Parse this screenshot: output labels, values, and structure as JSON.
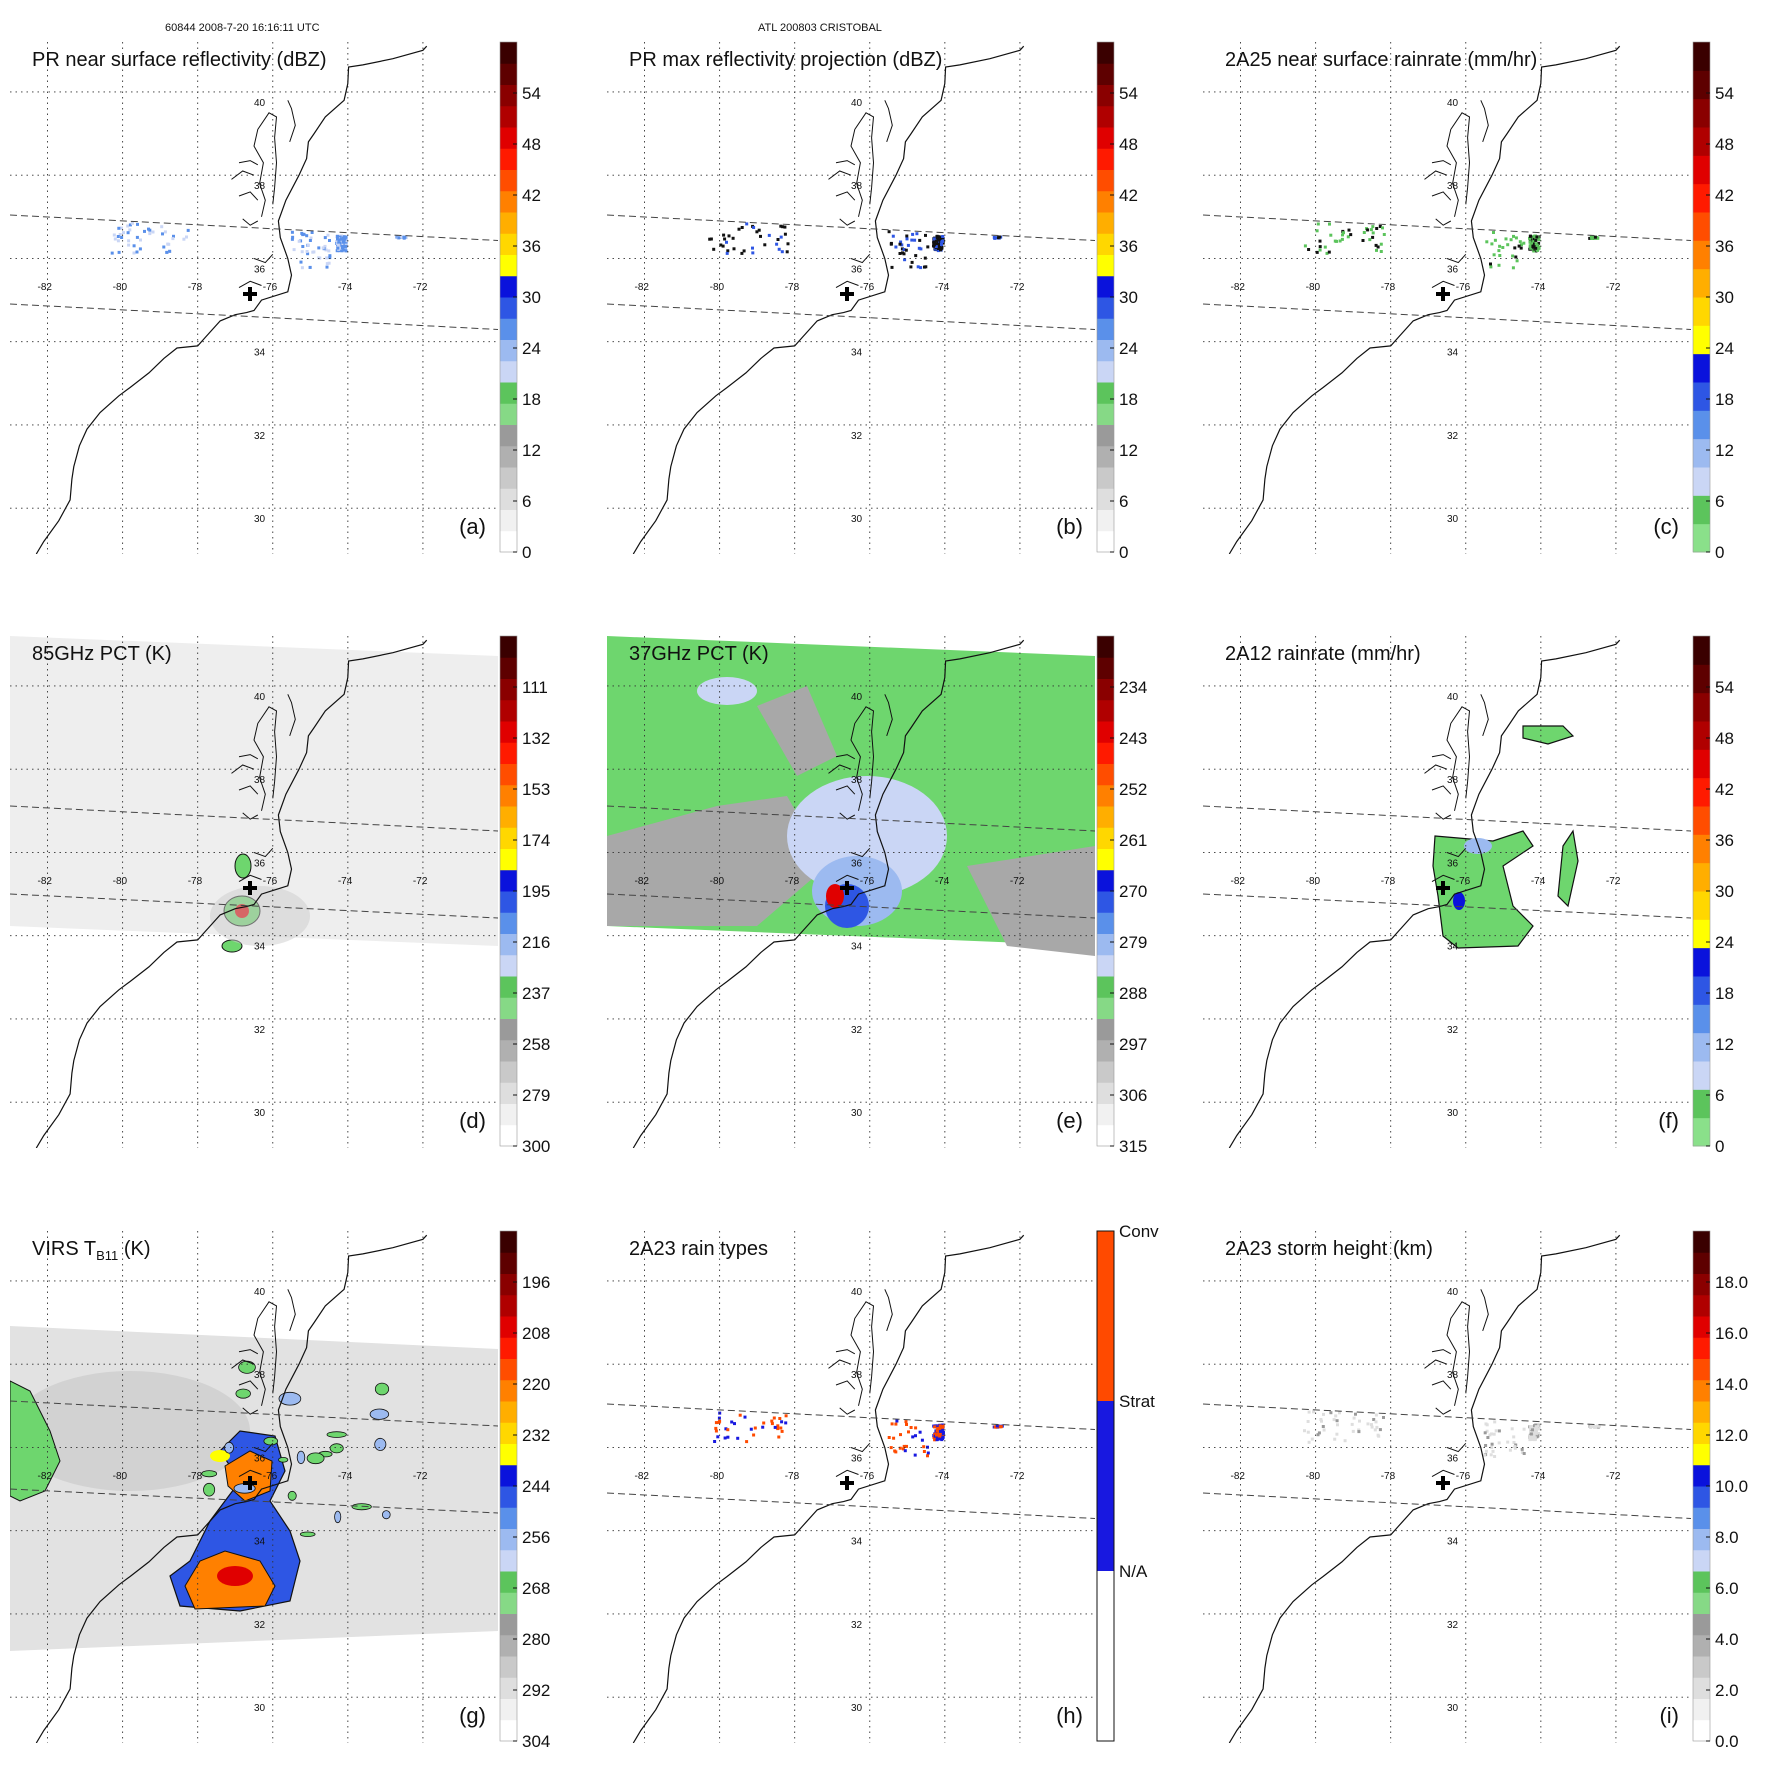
{
  "header": {
    "orbit_info": "60844 2008-7-20 16:16:11 UTC",
    "storm_info": "ATL 200803 CRISTOBAL"
  },
  "map": {
    "lon_labels": [
      "-82",
      "-80",
      "-78",
      "-76",
      "-74",
      "-72"
    ],
    "lat_labels": [
      "40",
      "38",
      "36",
      "34",
      "32",
      "30"
    ]
  },
  "palette": {
    "conv": "#ff4a00",
    "strat": "#1818e0",
    "na": "#ffffff",
    "land_line": "#111111",
    "grid": "#333333"
  },
  "panels": [
    {
      "id": "a",
      "title": "PR near surface reflectivity (dBZ)",
      "letter": "(a)",
      "type": "pr_sfc",
      "swath": "pr",
      "colorbar": {
        "kind": "dbz",
        "ticks": [
          "0",
          "6",
          "12",
          "18",
          "24",
          "30",
          "36",
          "42",
          "48",
          "54"
        ]
      }
    },
    {
      "id": "b",
      "title": "PR max reflectivity projection (dBZ)",
      "letter": "(b)",
      "type": "pr_max",
      "swath": "pr",
      "colorbar": {
        "kind": "dbz",
        "ticks": [
          "0",
          "6",
          "12",
          "18",
          "24",
          "30",
          "36",
          "42",
          "48",
          "54"
        ]
      }
    },
    {
      "id": "c",
      "title": "2A25 near surface rainrate (mm/hr)",
      "letter": "(c)",
      "type": "rain25",
      "swath": "pr",
      "colorbar": {
        "kind": "rain",
        "ticks": [
          "0",
          "6",
          "12",
          "18",
          "24",
          "30",
          "36",
          "42",
          "48",
          "54"
        ]
      }
    },
    {
      "id": "d",
      "title": "85GHz PCT (K)",
      "letter": "(d)",
      "type": "pct85",
      "swath": "tmi",
      "colorbar": {
        "kind": "pct",
        "ticks": [
          "300",
          "279",
          "258",
          "237",
          "216",
          "195",
          "174",
          "153",
          "132",
          "111"
        ]
      }
    },
    {
      "id": "e",
      "title": "37GHz PCT (K)",
      "letter": "(e)",
      "type": "pct37",
      "swath": "tmi",
      "colorbar": {
        "kind": "pct",
        "ticks": [
          "315",
          "306",
          "297",
          "288",
          "279",
          "270",
          "261",
          "252",
          "243",
          "234"
        ]
      }
    },
    {
      "id": "f",
      "title": "2A12 rainrate (mm/hr)",
      "letter": "(f)",
      "type": "rain12",
      "swath": "tmi",
      "colorbar": {
        "kind": "rain",
        "ticks": [
          "0",
          "6",
          "12",
          "18",
          "24",
          "30",
          "36",
          "42",
          "48",
          "54"
        ]
      }
    },
    {
      "id": "g",
      "title_main": "VIRS T",
      "title_sub": "B11",
      "title_tail": " (K)",
      "letter": "(g)",
      "type": "virs",
      "swath": "virs",
      "colorbar": {
        "kind": "virs",
        "ticks": [
          "304",
          "292",
          "280",
          "268",
          "256",
          "244",
          "232",
          "220",
          "208",
          "196"
        ]
      }
    },
    {
      "id": "h",
      "title": "2A23 rain types",
      "letter": "(h)",
      "type": "raintype",
      "swath": "pr",
      "colorbar": {
        "kind": "cat",
        "ticks": [
          "N/A",
          "Strat",
          "Conv"
        ]
      }
    },
    {
      "id": "i",
      "title": "2A23 storm height (km)",
      "letter": "(i)",
      "type": "height",
      "swath": "pr",
      "colorbar": {
        "kind": "height",
        "ticks": [
          "0.0",
          "2.0",
          "4.0",
          "6.0",
          "8.0",
          "10.0",
          "12.0",
          "14.0",
          "16.0",
          "18.0"
        ]
      }
    }
  ]
}
